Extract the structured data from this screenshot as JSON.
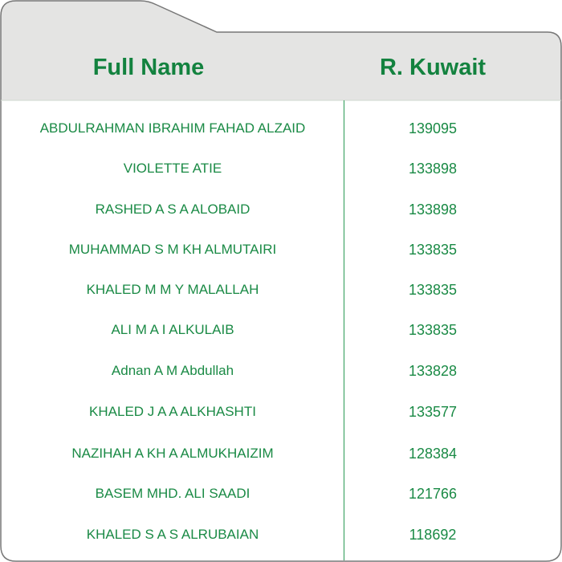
{
  "header": {
    "col_name": "Full Name",
    "col_value": "R. Kuwait"
  },
  "colors": {
    "accent": "#13823f",
    "header_bg": "#e4e4e3",
    "border": "#777777"
  },
  "rows": [
    {
      "name": "ABDULRAHMAN IBRAHIM FAHAD ALZAID",
      "value": "139095"
    },
    {
      "name": "VIOLETTE ATIE",
      "value": "133898"
    },
    {
      "name": "RASHED A S A ALOBAID",
      "value": "133898"
    },
    {
      "name": "MUHAMMAD S M KH ALMUTAIRI",
      "value": "133835"
    },
    {
      "name": "KHALED M M Y MALALLAH",
      "value": "133835"
    },
    {
      "name": "ALI M A I ALKULAIB",
      "value": "133835"
    },
    {
      "name": "Adnan A M Abdullah",
      "value": "133828"
    },
    {
      "name": "KHALED J A A ALKHASHTI",
      "value": "133577"
    },
    {
      "name": "NAZIHAH A KH A ALMUKHAIZIM",
      "value": "128384"
    },
    {
      "name": "BASEM MHD. ALI SAADI",
      "value": "121766"
    },
    {
      "name": "KHALED S A S ALRUBAIAN",
      "value": "118692"
    }
  ]
}
